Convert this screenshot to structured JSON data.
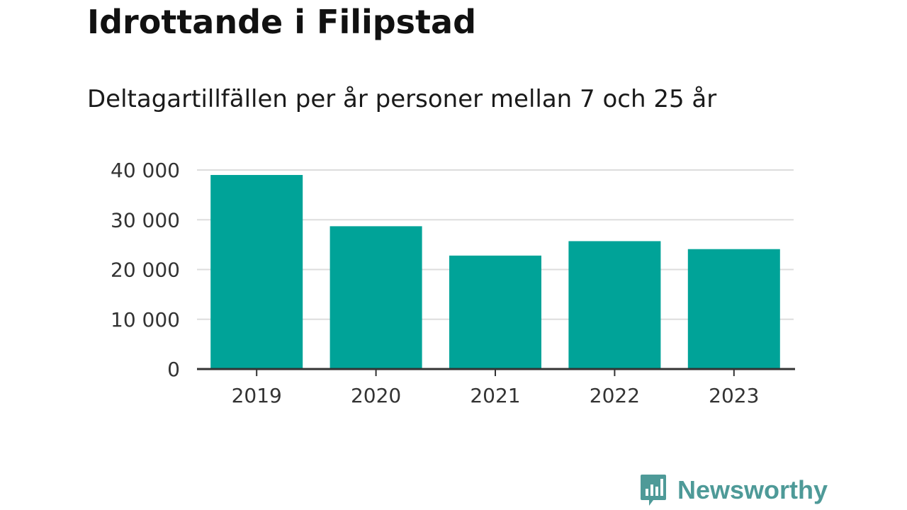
{
  "title": "Idrottande i Filipstad",
  "subtitle": "Deltagartillfällen per år personer mellan 7 och 25 år",
  "brand": {
    "name": "Newsworthy",
    "color": "#4e9a98",
    "icon": "newsworthy-chat-bar-icon"
  },
  "colors": {
    "bar": "#00a398",
    "grid": "#dddddd",
    "axis": "#333333"
  },
  "chart_data": {
    "type": "bar",
    "categories": [
      "2019",
      "2020",
      "2021",
      "2022",
      "2023"
    ],
    "values": [
      39000,
      28700,
      22800,
      25700,
      24100
    ],
    "yticks": [
      0,
      10000,
      20000,
      30000,
      40000
    ],
    "ytick_labels": [
      "0",
      "10 000",
      "20 000",
      "30 000",
      "40 000"
    ],
    "ylim": [
      0,
      40000
    ],
    "grid": true,
    "xlabel": "",
    "ylabel": ""
  }
}
